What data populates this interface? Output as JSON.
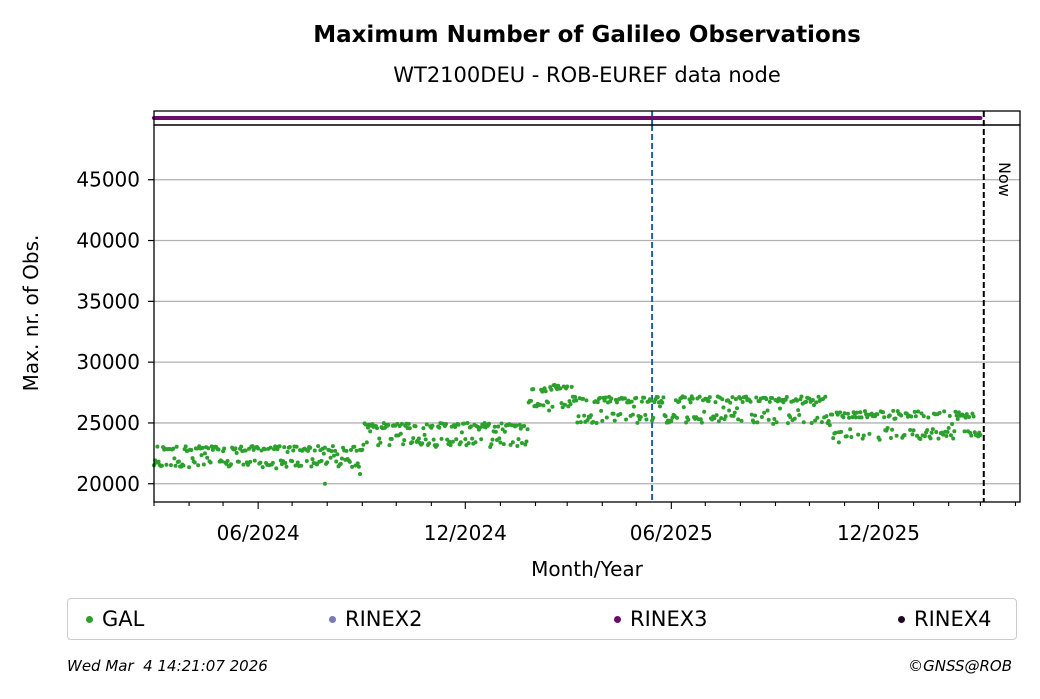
{
  "chart_data": {
    "type": "scatter",
    "title": "Maximum Number of Galileo Observations",
    "subtitle": "WT2100DEU - ROB-EUREF data node",
    "xlabel": "Month/Year",
    "ylabel": "Max. nr. of Obs.",
    "x_ticks": [
      "06/2024",
      "12/2024",
      "06/2025",
      "12/2025"
    ],
    "y_ticks": [
      20000,
      25000,
      30000,
      35000,
      40000,
      45000
    ],
    "ylim": [
      18500,
      49500
    ],
    "xlim": [
      "2024-03-01",
      "2026-04-05"
    ],
    "grid": "horizontal",
    "vline_blue_date": "2025-05-15",
    "now_date": "2026-03-04",
    "now_label": "Now",
    "series": [
      {
        "name": "GAL",
        "color": "#2ca02c",
        "segments": [
          {
            "start": "2024-03-01",
            "end": "2024-09-01",
            "min": 21200,
            "max": 23100
          },
          {
            "start": "2024-09-02",
            "end": "2025-01-25",
            "min": 23000,
            "max": 25000
          },
          {
            "start": "2025-01-26",
            "end": "2025-03-05",
            "min": 26000,
            "max": 28200
          },
          {
            "start": "2025-03-06",
            "end": "2025-10-20",
            "min": 24800,
            "max": 27200
          },
          {
            "start": "2025-10-21",
            "end": "2026-03-01",
            "min": 23500,
            "max": 26000
          }
        ],
        "outliers": [
          {
            "x": "2024-07-30",
            "y": 20000
          },
          {
            "x": "2024-08-30",
            "y": 20800
          },
          {
            "x": "2025-10-27",
            "y": 23400
          }
        ]
      },
      {
        "name": "RINEX2",
        "color": "#7b78b4"
      },
      {
        "name": "RINEX3",
        "color": "#6a0c6a",
        "band": {
          "start": "2024-03-01",
          "end": "2026-03-01"
        }
      },
      {
        "name": "RINEX4",
        "color": "#230628"
      }
    ]
  },
  "legend": [
    "GAL",
    "RINEX2",
    "RINEX3",
    "RINEX4"
  ],
  "footer": {
    "timestamp": "Wed Mar  4 14:21:07 2026",
    "copyright": "©GNSS@ROB"
  }
}
